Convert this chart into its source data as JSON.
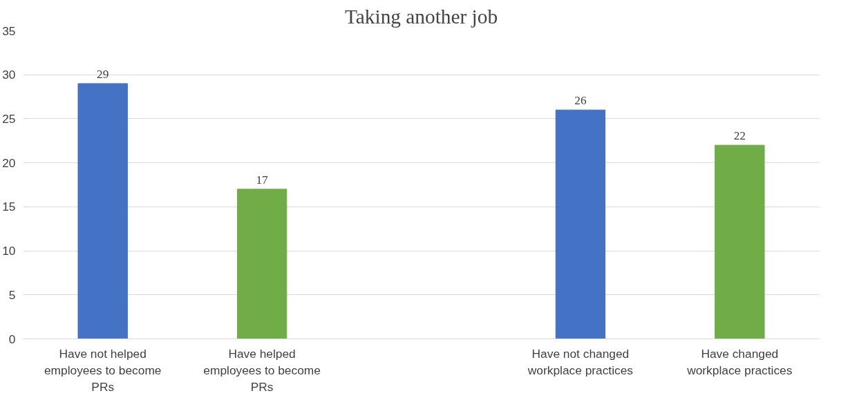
{
  "chart_data": {
    "type": "bar",
    "title": "Taking another job",
    "categories": [
      "Have not helped employees to become PRs",
      "Have helped employees to become PRs",
      null,
      "Have not changed workplace practices",
      "Have changed workplace practices"
    ],
    "values": [
      29,
      17,
      null,
      26,
      22
    ],
    "colors": [
      "#4472c4",
      "#70ad47",
      null,
      "#4472c4",
      "#70ad47"
    ],
    "ylim": [
      0,
      35
    ],
    "yticks": [
      0,
      5,
      10,
      15,
      20,
      25,
      30,
      35
    ],
    "grid": "y",
    "data_labels": true
  }
}
